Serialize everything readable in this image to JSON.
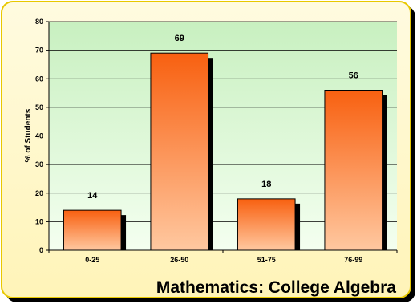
{
  "chart_data": {
    "type": "bar",
    "title": "Mathematics: College Algebra",
    "xlabel": "",
    "ylabel": "% of Students",
    "categories": [
      "0-25",
      "26-50",
      "51-75",
      "76-99"
    ],
    "values": [
      14,
      69,
      18,
      56
    ],
    "ylim": [
      0,
      80
    ],
    "yticks": [
      "0",
      "10",
      "20",
      "30",
      "40",
      "50",
      "60",
      "70",
      "80"
    ],
    "grid": true,
    "legend": "none"
  },
  "colors": {
    "frame_fill": "#fff8c8",
    "frame_edge": "#e8c800",
    "plot_bg_top": "#c8f0c0",
    "plot_bg_bottom": "#f4fff0",
    "bar_top": "#f86010",
    "bar_bottom": "#ffc8a0",
    "bar_shadow": "#000000"
  }
}
